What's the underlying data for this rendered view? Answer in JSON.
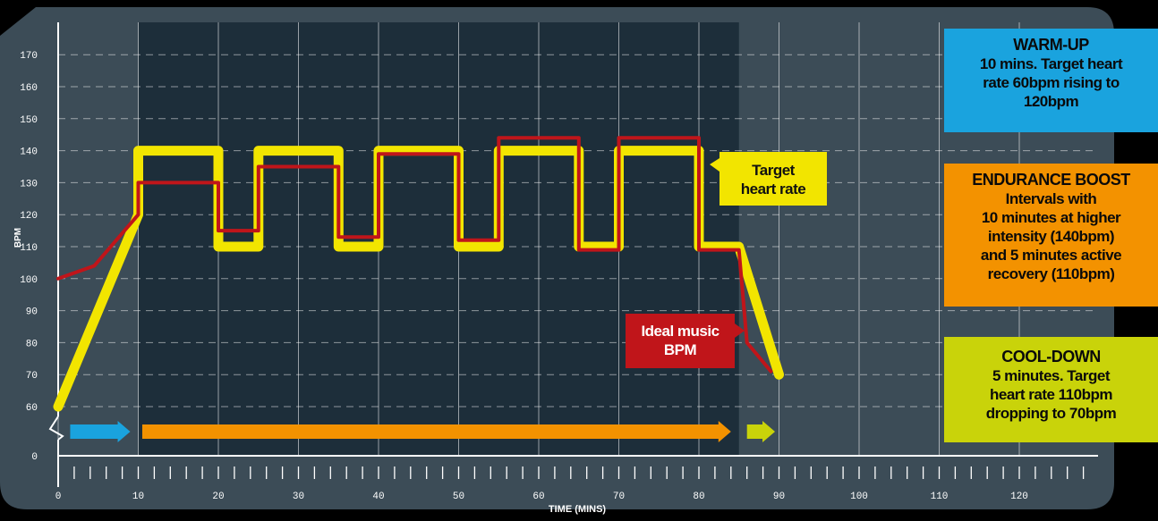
{
  "colors": {
    "background": "#000000",
    "panel": "#3c4c57",
    "panel_shaded": "#1d2e3a",
    "target_line": "#f2e500",
    "music_line": "#c0151a",
    "warmup": "#1aa3de",
    "endurance": "#f39200",
    "cooldown": "#c9d30a",
    "axis_text": "#ffffff"
  },
  "chart_data": {
    "type": "line",
    "title": "",
    "xlabel": "TIME (MINS)",
    "ylabel": "BPM",
    "xlim": [
      0,
      130
    ],
    "ylim": [
      0,
      175
    ],
    "grid": true,
    "x_ticks": [
      0,
      10,
      20,
      30,
      40,
      50,
      60,
      70,
      80,
      90,
      100,
      110,
      120
    ],
    "y_ticks": [
      0,
      60,
      70,
      80,
      90,
      100,
      110,
      120,
      130,
      140,
      150,
      160,
      170
    ],
    "axis_break": "between 0 and 60 BPM",
    "shaded_region": {
      "x_start": 10,
      "x_end": 85
    },
    "series": [
      {
        "name": "Target heart rate",
        "color": "#f2e500",
        "points": [
          [
            0,
            60
          ],
          [
            10,
            120
          ],
          [
            10,
            140
          ],
          [
            20,
            140
          ],
          [
            20,
            110
          ],
          [
            25,
            110
          ],
          [
            25,
            140
          ],
          [
            35,
            140
          ],
          [
            35,
            110
          ],
          [
            40,
            110
          ],
          [
            40,
            140
          ],
          [
            50,
            140
          ],
          [
            50,
            110
          ],
          [
            55,
            110
          ],
          [
            55,
            140
          ],
          [
            65,
            140
          ],
          [
            65,
            110
          ],
          [
            70,
            110
          ],
          [
            70,
            140
          ],
          [
            80,
            140
          ],
          [
            80,
            110
          ],
          [
            85,
            110
          ],
          [
            90,
            70
          ]
        ]
      },
      {
        "name": "Ideal music BPM",
        "color": "#c0151a",
        "points": [
          [
            0,
            100
          ],
          [
            4.5,
            104
          ],
          [
            10,
            120
          ],
          [
            10,
            130
          ],
          [
            20,
            130
          ],
          [
            20,
            115
          ],
          [
            25,
            115
          ],
          [
            25,
            135
          ],
          [
            35,
            135
          ],
          [
            35,
            113
          ],
          [
            40,
            113
          ],
          [
            40,
            139
          ],
          [
            50,
            139
          ],
          [
            50,
            112
          ],
          [
            55,
            112
          ],
          [
            55,
            144
          ],
          [
            65,
            144
          ],
          [
            65,
            109
          ],
          [
            70,
            109
          ],
          [
            70,
            144
          ],
          [
            80,
            144
          ],
          [
            80,
            109
          ],
          [
            85,
            109
          ],
          [
            86,
            80
          ],
          [
            89,
            71
          ]
        ]
      }
    ],
    "phase_arrows": [
      {
        "phase": "warm-up",
        "x_start": 1.5,
        "x_end": 9,
        "color": "#1aa3de"
      },
      {
        "phase": "endurance",
        "x_start": 10.5,
        "x_end": 84,
        "color": "#f39200"
      },
      {
        "phase": "cool-down",
        "x_start": 86,
        "x_end": 89.5,
        "color": "#c9d30a"
      }
    ],
    "annotations": [
      {
        "key": "target",
        "lines": [
          "Target",
          "heart rate"
        ]
      },
      {
        "key": "music",
        "lines": [
          "Ideal music",
          "BPM"
        ]
      }
    ]
  },
  "info_boxes": {
    "warmup": {
      "title": "WARM-UP",
      "lines": [
        "10 mins. Target heart",
        "rate 60bpm rising to",
        "120bpm"
      ]
    },
    "endurance": {
      "title": "ENDURANCE BOOST",
      "lines": [
        "Intervals with",
        "10 minutes at higher",
        "intensity (140bpm)",
        "and 5 minutes active",
        "recovery (110bpm)"
      ]
    },
    "cooldown": {
      "title": "COOL-DOWN",
      "lines": [
        "5 minutes. Target",
        "heart rate 110bpm",
        "dropping to 70bpm"
      ]
    }
  }
}
